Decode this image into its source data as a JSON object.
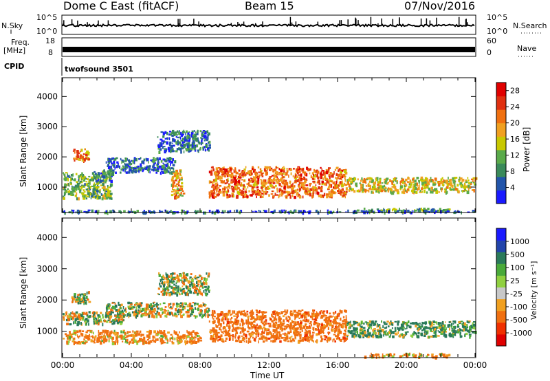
{
  "header": {
    "station": "Dome C East (fitACF)",
    "beam": "Beam 15",
    "date": "07/Nov/2016"
  },
  "nsky_panel": {
    "left_label": "N.Sky",
    "right_label": "N.Search",
    "left_ticks": [
      "10^5",
      "10^0"
    ],
    "right_ticks": [
      "10^5",
      "10^0"
    ]
  },
  "freq_panel": {
    "left_label": "Freq.",
    "left_unit": "[MHz]",
    "right_label": "Nave",
    "left_ticks": [
      "18",
      "8"
    ],
    "right_ticks": [
      "60",
      "0"
    ]
  },
  "cpid_panel": {
    "label": "CPID",
    "value": "twofsound 3501"
  },
  "colors": {
    "power_scale": [
      "#1a1aff",
      "#2255aa",
      "#3a8a5a",
      "#5aaa4a",
      "#c8c800",
      "#f0a020",
      "#f07010",
      "#e03010",
      "#e00000"
    ],
    "velocity_scale": [
      "#e00000",
      "#f03000",
      "#f07010",
      "#f0a020",
      "#c8c8c8",
      "#90d040",
      "#4aaa3a",
      "#2a7a5a",
      "#2244aa",
      "#1a1aff"
    ]
  },
  "chart_data": [
    {
      "type": "heatmap",
      "title": "",
      "xlabel": "Time UT",
      "ylabel": "Slant Range [km]",
      "xlim": [
        "00:00",
        "24:00"
      ],
      "ylim": [
        180,
        4600
      ],
      "x_ticks": [
        "00:00",
        "04:00",
        "08:00",
        "12:00",
        "16:00",
        "20:00",
        "00:00"
      ],
      "y_ticks": [
        1000,
        2000,
        3000,
        4000
      ],
      "colorbar": {
        "label": "Power [dB]",
        "ticks": [
          4,
          8,
          12,
          16,
          20,
          24,
          28
        ],
        "range": [
          0,
          30
        ]
      },
      "echo_regions": [
        {
          "t_start": 0.0,
          "t_end": 2.8,
          "range_low": 650,
          "range_high": 1500,
          "level": 12
        },
        {
          "t_start": 0.5,
          "t_end": 1.5,
          "range_low": 1900,
          "range_high": 2300,
          "level": 20
        },
        {
          "t_start": 1.8,
          "t_end": 3.0,
          "range_low": 1200,
          "range_high": 1600,
          "level": 8
        },
        {
          "t_start": 2.5,
          "t_end": 6.5,
          "range_low": 1500,
          "range_high": 2000,
          "level": 6
        },
        {
          "t_start": 5.5,
          "t_end": 8.5,
          "range_low": 2200,
          "range_high": 2900,
          "level": 6
        },
        {
          "t_start": 6.3,
          "t_end": 7.0,
          "range_low": 700,
          "range_high": 1600,
          "level": 18
        },
        {
          "t_start": 8.5,
          "t_end": 16.5,
          "range_low": 700,
          "range_high": 1700,
          "level": 22
        },
        {
          "t_start": 16.5,
          "t_end": 24.0,
          "range_low": 850,
          "range_high": 1350,
          "level": 16
        },
        {
          "t_start": 17.5,
          "t_end": 22.5,
          "range_low": 200,
          "range_high": 320,
          "level": 10
        },
        {
          "t_start": 0.0,
          "t_end": 24.0,
          "range_low": 180,
          "range_high": 260,
          "level": 6
        }
      ]
    },
    {
      "type": "heatmap",
      "title": "",
      "xlabel": "Time UT",
      "ylabel": "Slant Range [km]",
      "xlim": [
        "00:00",
        "24:00"
      ],
      "ylim": [
        180,
        4600
      ],
      "x_ticks": [
        "00:00",
        "04:00",
        "08:00",
        "12:00",
        "16:00",
        "20:00",
        "00:00"
      ],
      "y_ticks": [
        1000,
        2000,
        3000,
        4000
      ],
      "colorbar": {
        "label": "Velocity [m s⁻¹]",
        "ticks": [
          -1000,
          -500,
          -100,
          -25,
          25,
          100,
          500,
          1000
        ]
      },
      "echo_regions": [
        {
          "t_start": 0.0,
          "t_end": 8.0,
          "range_low": 650,
          "range_high": 1050,
          "velocity": -200
        },
        {
          "t_start": 0.0,
          "t_end": 3.5,
          "range_low": 1250,
          "range_high": 1650,
          "velocity": 0
        },
        {
          "t_start": 0.5,
          "t_end": 1.5,
          "range_low": 1900,
          "range_high": 2300,
          "velocity": 50
        },
        {
          "t_start": 2.5,
          "t_end": 8.5,
          "range_low": 1500,
          "range_high": 1950,
          "velocity": 0
        },
        {
          "t_start": 5.5,
          "t_end": 8.5,
          "range_low": 2200,
          "range_high": 2900,
          "velocity": 20
        },
        {
          "t_start": 8.5,
          "t_end": 16.5,
          "range_low": 700,
          "range_high": 1700,
          "velocity": -300
        },
        {
          "t_start": 16.5,
          "t_end": 24.0,
          "range_low": 850,
          "range_high": 1350,
          "velocity": 150
        },
        {
          "t_start": 17.5,
          "t_end": 22.5,
          "range_low": 200,
          "range_high": 320,
          "velocity": -150
        }
      ]
    }
  ]
}
